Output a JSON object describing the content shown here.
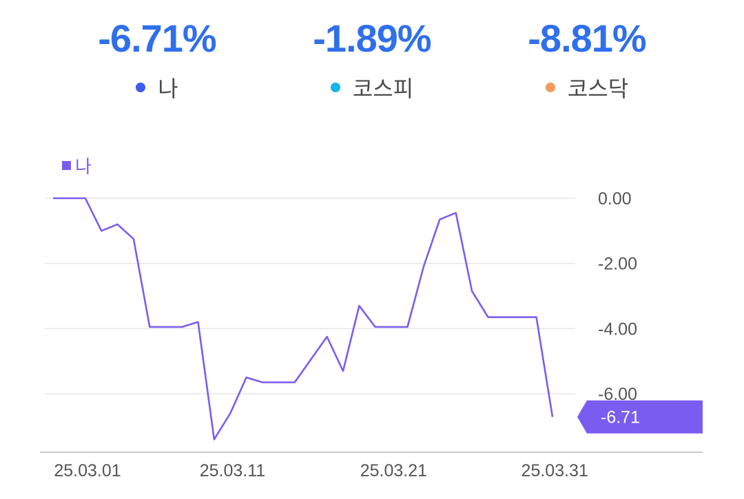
{
  "summary": [
    {
      "value": "-6.71%",
      "label": "나",
      "color": "#3d5af1"
    },
    {
      "value": "-1.89%",
      "label": "코스피",
      "color": "#14b5ea"
    },
    {
      "value": "-8.81%",
      "label": "코스닥",
      "color": "#f39a5a"
    }
  ],
  "chart_data": {
    "type": "line",
    "title": "",
    "legend": {
      "label": "나",
      "color": "#7b5cf0",
      "position": "top-left"
    },
    "series": [
      {
        "name": "나",
        "color": "#7b5cf0",
        "x": [
          "25.03.01",
          "25.03.03",
          "25.03.04",
          "25.03.05",
          "25.03.06",
          "25.03.07",
          "25.03.08",
          "25.03.09",
          "25.03.10",
          "25.03.11",
          "25.03.12",
          "25.03.13",
          "25.03.14",
          "25.03.15",
          "25.03.16",
          "25.03.17",
          "25.03.18",
          "25.03.19",
          "25.03.20",
          "25.03.21",
          "25.03.22",
          "25.03.23",
          "25.03.24",
          "25.03.25",
          "25.03.26",
          "25.03.27",
          "25.03.28",
          "25.03.29",
          "25.03.30",
          "25.03.31",
          "25.04.01",
          "25.04.02"
        ],
        "values": [
          0.0,
          0.0,
          0.0,
          -1.0,
          -0.8,
          -1.25,
          -3.95,
          -3.95,
          -3.95,
          -3.8,
          -7.4,
          -6.6,
          -5.5,
          -5.65,
          -5.65,
          -5.65,
          -4.95,
          -4.25,
          -5.3,
          -3.3,
          -3.95,
          -3.95,
          -3.95,
          -2.1,
          -0.65,
          -0.45,
          -2.85,
          -3.65,
          -3.65,
          -3.65,
          -3.65,
          -6.71
        ]
      }
    ],
    "xticks": [
      "25.03.01",
      "25.03.11",
      "25.03.21",
      "25.03.31"
    ],
    "yticks": [
      "0.00",
      "-2.00",
      "-4.00",
      "-6.00"
    ],
    "ylim": [
      -7.6,
      0.3
    ],
    "grid": true,
    "last_value_label": "-6.71"
  }
}
